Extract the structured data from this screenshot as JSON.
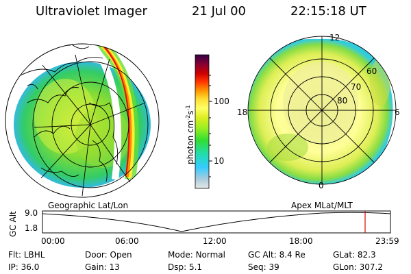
{
  "header": {
    "instrument": "Ultraviolet Imager",
    "date": "21 Jul 00",
    "time": "22:15:18 UT"
  },
  "left_panel": {
    "label": "Geographic Lat/Lon"
  },
  "right_panel": {
    "label": "Apex MLat/MLT",
    "mlt_labels": [
      "12",
      "18",
      "6",
      "0"
    ],
    "mlat_labels": [
      "60",
      "70",
      "80"
    ]
  },
  "colorbar": {
    "unit_label": "photon cm",
    "unit_exp1": "-2",
    "unit_mid": "s",
    "unit_exp2": "-1",
    "ticks": [
      "100",
      "10"
    ],
    "scale": "log",
    "colors": [
      "#e6e6e6",
      "#aaccdd",
      "#33ccff",
      "#22ddaa",
      "#33dd33",
      "#99ee22",
      "#ddee22",
      "#ffff66",
      "#ffdd33",
      "#ff9900",
      "#ff3300",
      "#cc0000",
      "#880033",
      "#330044"
    ]
  },
  "altitude_plot": {
    "ylabel": "GC Alt",
    "ytick_top": "9.0",
    "ytick_bottom": "1.8",
    "xticks": [
      "00:00",
      "06:00",
      "12:00",
      "18:00",
      "23:59"
    ],
    "marker_time": "22:15",
    "marker_color": "#dd0000"
  },
  "info": {
    "row1": [
      {
        "label": "Flt:",
        "value": "LBHL"
      },
      {
        "label": "Door:",
        "value": "Open"
      },
      {
        "label": "Mode:",
        "value": "Normal"
      },
      {
        "label": "GC Alt:",
        "value": "8.4 Re"
      },
      {
        "label": "GLat:",
        "value": "82.3"
      }
    ],
    "row2": [
      {
        "label": "IP:",
        "value": "36.0"
      },
      {
        "label": "Gain:",
        "value": "13"
      },
      {
        "label": "Dsp:",
        "value": "5.1"
      },
      {
        "label": "Seq:",
        "value": "39"
      },
      {
        "label": "GLon:",
        "value": "307.2"
      }
    ]
  }
}
